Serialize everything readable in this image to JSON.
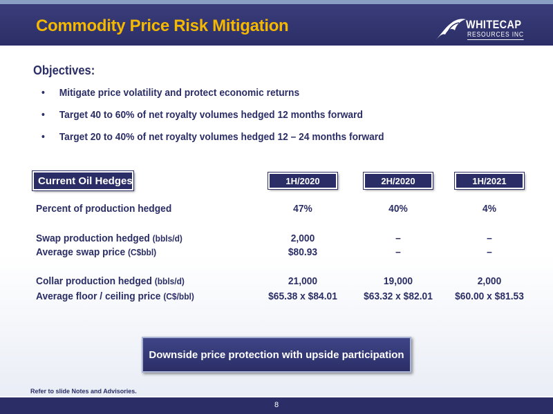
{
  "header": {
    "title": "Commodity Price Risk Mitigation",
    "logo_line1": "WHITECAP",
    "logo_line2": "RESOURCES INC"
  },
  "objectives": {
    "heading": "Objectives:",
    "bullet_glyph": "•",
    "items": [
      "Mitigate price volatility and protect economic returns",
      "Target 40 to 60% of net royalty volumes hedged 12 months forward",
      "Target 20 to 40% of net royalty volumes hedged 12 – 24 months forward"
    ]
  },
  "hedges": {
    "label": "Current Oil Hedges",
    "periods": [
      "1H/2020",
      "2H/2020",
      "1H/2021"
    ],
    "rows": [
      {
        "label": "Percent of production hedged",
        "unit": "",
        "values": [
          "47%",
          "40%",
          "4%"
        ]
      },
      {
        "label": "Swap production hedged ",
        "unit": "(bbls/d)",
        "values": [
          "2,000",
          "–",
          "–"
        ]
      },
      {
        "label": "Average swap price ",
        "unit": "(C$bbl)",
        "values": [
          "$80.93",
          "–",
          "–"
        ]
      },
      {
        "label": "Collar production hedged ",
        "unit": "(bbls/d)",
        "values": [
          "21,000",
          "19,000",
          "2,000"
        ]
      },
      {
        "label": "Average floor / ceiling price ",
        "unit": "(C$/bbl)",
        "values": [
          "$65.38 x $84.01",
          "$63.32 x $82.01",
          "$60.00 x $81.53"
        ]
      }
    ]
  },
  "callout": "Downside price protection with upside participation",
  "footnote": "Refer to slide Notes and Advisories.",
  "footer": {
    "page_number": "8"
  },
  "colors": {
    "navy": "#2b2e66",
    "title_gold": "#f5b800",
    "header_stripe": "#8a9fc4"
  },
  "icons": {
    "logo": "wave-logo-icon"
  }
}
